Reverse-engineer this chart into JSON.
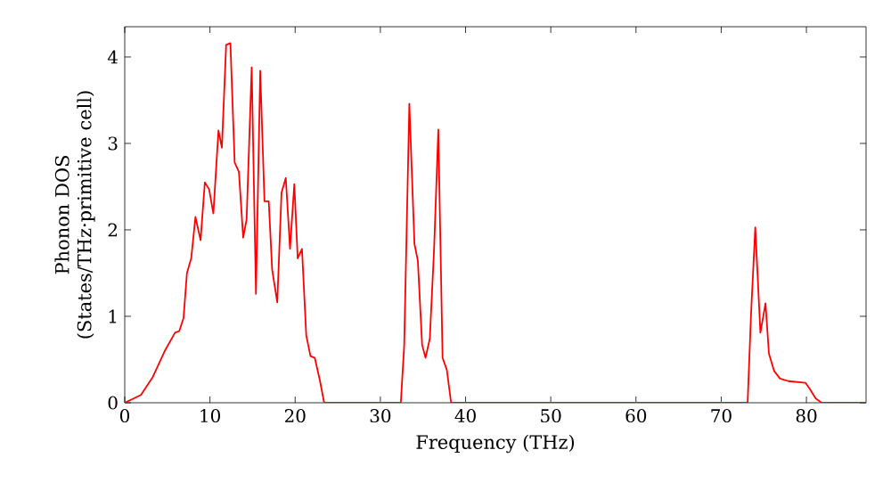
{
  "chart_data": {
    "type": "line",
    "xlabel": "Frequency (THz)",
    "ylabel": "Phonon DOS (States/THz·primitive cell)",
    "xlim": [
      0,
      87
    ],
    "ylim": [
      0,
      4.35
    ],
    "xticks": [
      0,
      10,
      20,
      30,
      40,
      50,
      60,
      70,
      80
    ],
    "yticks": [
      0,
      1,
      2,
      3,
      4
    ],
    "grid": false,
    "marker": "none",
    "line_style": "solid",
    "series": [
      {
        "color": "#ff0000",
        "x": [
          0,
          1.9,
          3.3,
          4.7,
          5.9,
          6.4,
          6.9,
          7.3,
          7.8,
          8.3,
          8.9,
          9.4,
          9.9,
          10.4,
          11.0,
          11.4,
          11.9,
          12.4,
          12.9,
          13.4,
          13.9,
          14.3,
          14.9,
          15.4,
          15.9,
          16.4,
          16.9,
          17.3,
          17.9,
          18.4,
          18.9,
          19.4,
          19.9,
          20.3,
          20.8,
          21.3,
          21.8,
          22.3,
          22.9,
          23.4,
          32.4,
          32.8,
          33.4,
          34.0,
          34.4,
          34.9,
          35.3,
          35.8,
          36.3,
          36.8,
          37.3,
          37.8,
          38.3,
          73.1,
          73.5,
          74.0,
          74.6,
          75.2,
          75.6,
          76.2,
          76.9,
          77.9,
          79.9,
          80.4,
          81.1,
          81.8,
          87
        ],
        "values": [
          0,
          0.09,
          0.3,
          0.6,
          0.81,
          0.83,
          0.98,
          1.5,
          1.67,
          2.15,
          1.88,
          2.55,
          2.47,
          2.19,
          3.15,
          2.95,
          4.14,
          4.16,
          2.78,
          2.67,
          1.91,
          2.12,
          3.88,
          1.26,
          3.84,
          2.33,
          2.33,
          1.54,
          1.16,
          2.43,
          2.6,
          1.78,
          2.53,
          1.67,
          1.78,
          0.78,
          0.54,
          0.52,
          0.26,
          0,
          0,
          0.67,
          3.46,
          1.84,
          1.64,
          0.67,
          0.52,
          0.74,
          1.77,
          3.16,
          0.52,
          0.38,
          0,
          0,
          1.02,
          2.03,
          0.81,
          1.15,
          0.57,
          0.37,
          0.28,
          0.25,
          0.23,
          0.16,
          0.05,
          0,
          0
        ]
      }
    ]
  }
}
